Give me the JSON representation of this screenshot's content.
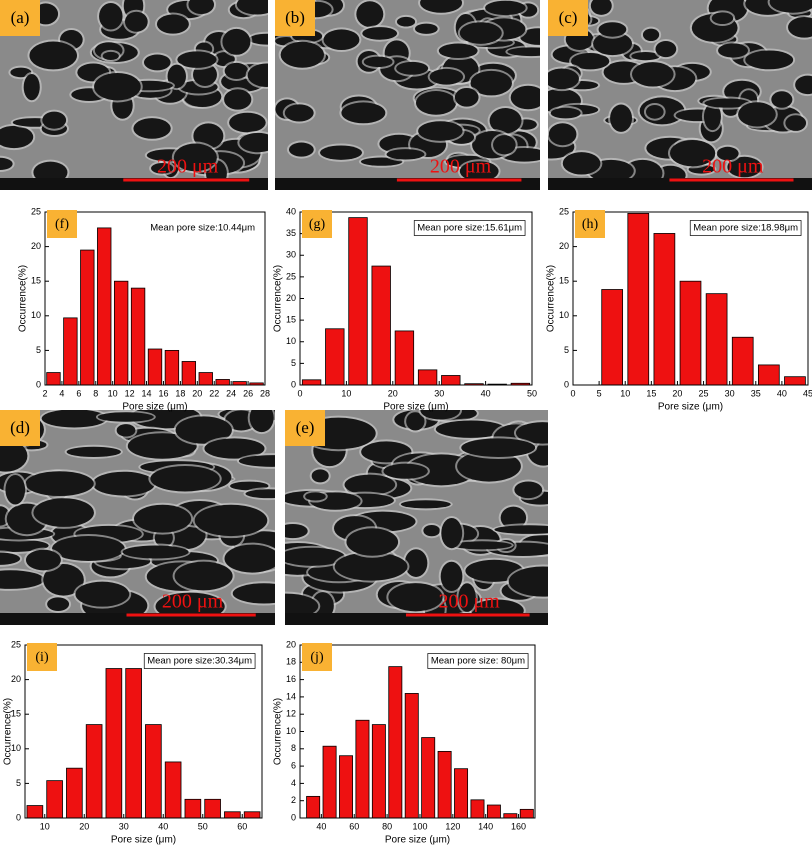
{
  "images": [
    {
      "label": "(a)",
      "scale_bar": "200 μm"
    },
    {
      "label": "(b)",
      "scale_bar": "200 μm"
    },
    {
      "label": "(c)",
      "scale_bar": "200 μm"
    },
    {
      "label": "(d)",
      "scale_bar": "200 μm"
    },
    {
      "label": "(e)",
      "scale_bar": "200 μm"
    }
  ],
  "chart_data": [
    {
      "type": "histogram",
      "label": "(f)",
      "annotation": "Mean pore size:10.44μm",
      "x_label": "Pore size (μm)",
      "y_label": "Occurrence(%)",
      "color": "#ee1111",
      "bins": [
        2,
        4,
        6,
        8,
        10,
        12,
        14,
        16,
        18,
        20,
        22,
        24,
        26,
        28
      ],
      "values": [
        1.8,
        9.7,
        19.5,
        22.7,
        15,
        14,
        5.2,
        5,
        3.4,
        1.8,
        0.8,
        0.5,
        0.3
      ],
      "xlim": [
        2,
        28
      ],
      "xticks": [
        2,
        4,
        6,
        8,
        10,
        12,
        14,
        16,
        18,
        20,
        22,
        24,
        26,
        28
      ],
      "ylim": [
        0,
        25
      ],
      "yticks": [
        0,
        5,
        10,
        15,
        20,
        25
      ]
    },
    {
      "type": "histogram",
      "label": "(g)",
      "annotation": "Mean pore size:15.61μm",
      "x_label": "Pore size (μm)",
      "y_label": "Occurrence(%)",
      "color": "#ee1111",
      "bins": [
        0,
        5,
        10,
        15,
        20,
        25,
        30,
        35,
        40,
        45,
        50
      ],
      "values": [
        1.2,
        13,
        38.7,
        27.5,
        12.5,
        3.5,
        2.2,
        0.3,
        0.2,
        0.4
      ],
      "xlim": [
        0,
        50
      ],
      "xticks": [
        0,
        10,
        20,
        30,
        40,
        50
      ],
      "ylim": [
        0,
        40
      ],
      "yticks": [
        0,
        5,
        10,
        15,
        20,
        25,
        30,
        35,
        40
      ]
    },
    {
      "type": "histogram",
      "label": "(h)",
      "annotation": "Mean pore size:18.98μm",
      "x_label": "Pore size (μm)",
      "y_label": "Occurrence(%)",
      "color": "#ee1111",
      "bins": [
        5,
        10,
        15,
        20,
        25,
        30,
        35,
        40,
        45
      ],
      "values": [
        13.8,
        24.8,
        21.9,
        15,
        13.2,
        6.9,
        2.9,
        1.2
      ],
      "xlim": [
        0,
        45
      ],
      "xticks": [
        0,
        5,
        10,
        15,
        20,
        25,
        30,
        35,
        40,
        45
      ],
      "ylim": [
        0,
        25
      ],
      "yticks": [
        0,
        5,
        10,
        15,
        20,
        25
      ]
    },
    {
      "type": "histogram",
      "label": "(i)",
      "annotation": "Mean pore size:30.34μm",
      "x_label": "Pore size (μm)",
      "y_label": "Occurrence(%)",
      "color": "#ee1111",
      "bins": [
        5,
        10,
        15,
        20,
        25,
        30,
        35,
        40,
        45,
        50,
        55,
        60,
        65
      ],
      "values": [
        1.8,
        5.4,
        7.2,
        13.5,
        21.6,
        21.6,
        13.5,
        8.1,
        2.7,
        2.7,
        0.9,
        0.9
      ],
      "xlim": [
        5,
        65
      ],
      "xticks": [
        10,
        20,
        30,
        40,
        50,
        60
      ],
      "ylim": [
        0,
        25
      ],
      "yticks": [
        0,
        5,
        10,
        15,
        20,
        25
      ]
    },
    {
      "type": "histogram",
      "label": "(j)",
      "annotation": "Mean pore size: 80μm",
      "x_label": "Pore size (μm)",
      "y_label": "Occurrence(%)",
      "color": "#ee1111",
      "bins": [
        30,
        40,
        50,
        60,
        70,
        80,
        90,
        100,
        110,
        120,
        130,
        140,
        150,
        160,
        170
      ],
      "values": [
        2.5,
        8.3,
        7.2,
        11.3,
        10.8,
        17.5,
        14.4,
        9.3,
        7.7,
        5.7,
        2.1,
        1.5,
        0.5,
        1.0
      ],
      "xlim": [
        27,
        170
      ],
      "xticks": [
        40,
        60,
        80,
        100,
        120,
        140,
        160
      ],
      "ylim": [
        0,
        20
      ],
      "yticks": [
        0,
        2,
        4,
        6,
        8,
        10,
        12,
        14,
        16,
        18,
        20
      ]
    }
  ]
}
